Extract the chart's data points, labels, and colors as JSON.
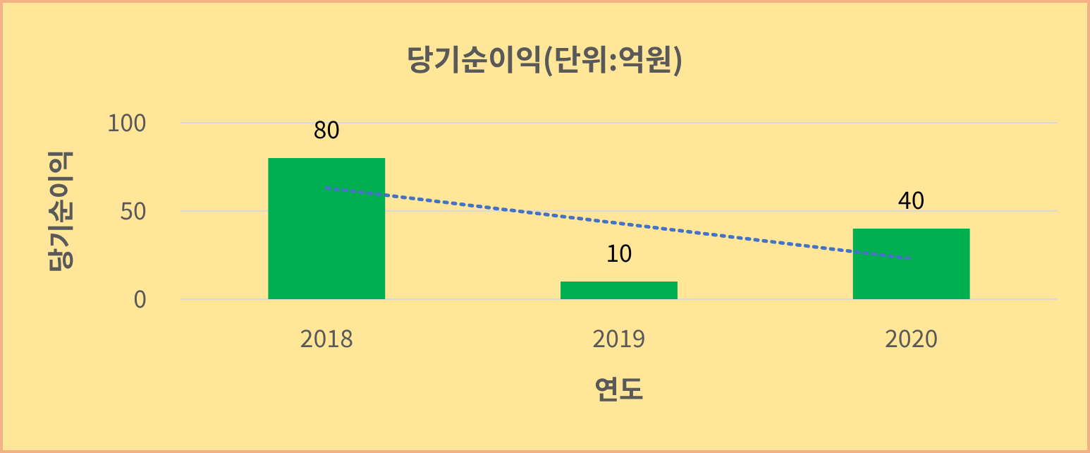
{
  "chart_data": {
    "type": "bar",
    "title": "당기순이익(단위:억원)",
    "xlabel": "연도",
    "ylabel": "당기순이익",
    "categories": [
      "2018",
      "2019",
      "2020"
    ],
    "series": [
      {
        "color": "#00b050",
        "values": [
          80,
          10,
          40
        ],
        "value_labels": [
          "80",
          "10",
          "40"
        ]
      },
      {
        "type": "line",
        "color": "#4472c4",
        "values": [
          63,
          43,
          23
        ],
        "line_style": "dotted",
        "marker": "none"
      }
    ],
    "ylim": [
      0,
      100
    ],
    "yticks": [
      0,
      50,
      100
    ],
    "grid": "y"
  }
}
